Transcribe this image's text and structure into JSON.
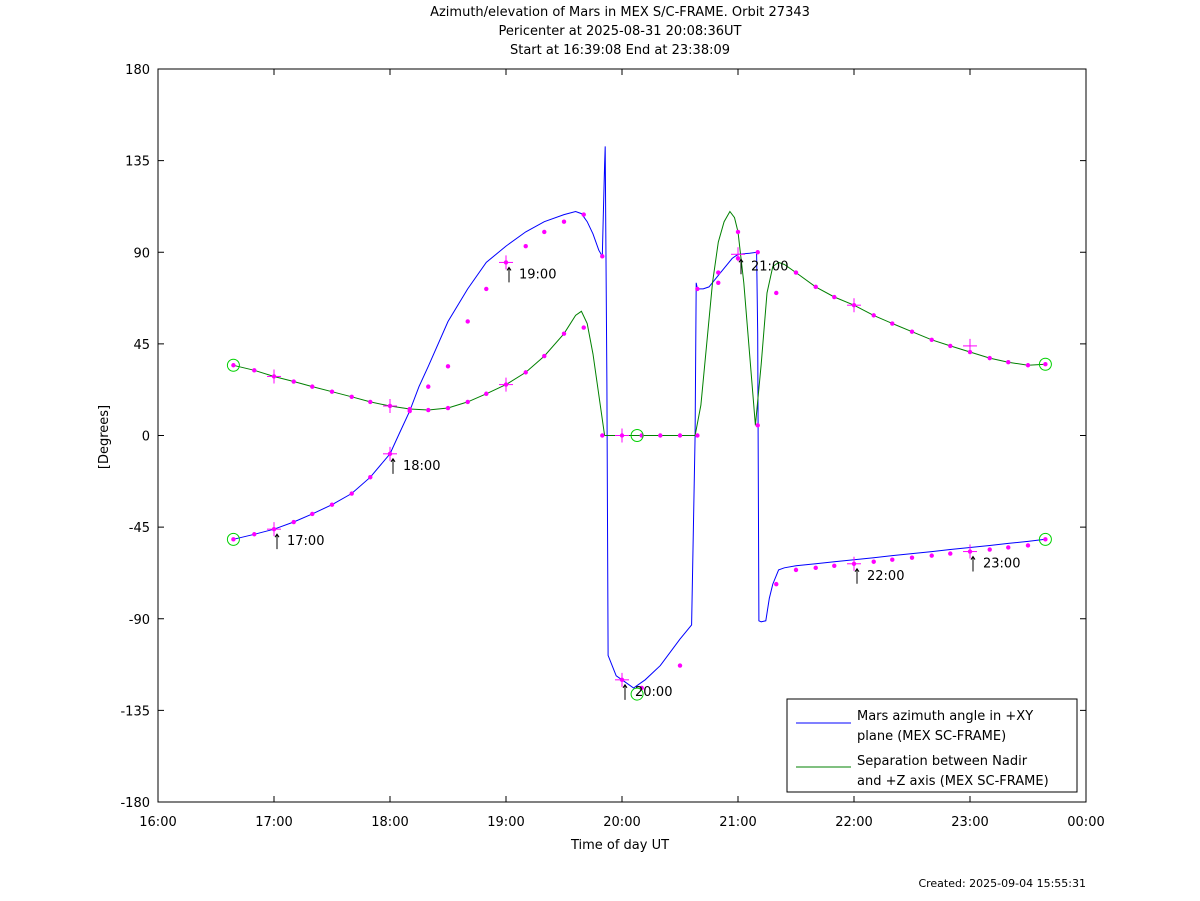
{
  "chart_data": {
    "type": "line",
    "title_lines": [
      "Azimuth/elevation of Mars in MEX S/C-FRAME.  Orbit 27343",
      "Pericenter at 2025-08-31 20:08:36UT",
      "Start at 16:39:08 End at 23:38:09"
    ],
    "xlabel": "Time of day UT",
    "ylabel": "[Degrees]",
    "xlim": [
      16.0,
      24.0
    ],
    "ylim": [
      -180,
      180
    ],
    "x_tick_values": [
      16,
      17,
      18,
      19,
      20,
      21,
      22,
      23,
      24
    ],
    "x_tick_labels": [
      "16:00",
      "17:00",
      "18:00",
      "19:00",
      "20:00",
      "21:00",
      "22:00",
      "23:00",
      "00:00"
    ],
    "y_tick_values": [
      180,
      135,
      90,
      45,
      0,
      -45,
      -90,
      -135,
      -180
    ],
    "y_tick_labels": [
      "180",
      "135",
      "90",
      "45",
      "0",
      "-45",
      "-90",
      "-135",
      "-180"
    ],
    "legend_position": "bottom-right",
    "series": [
      {
        "name": "Mars azimuth angle in +XY plane (MEX SC-FRAME)",
        "legend_lines": [
          "Mars azimuth angle in +XY",
          "plane (MEX SC-FRAME)"
        ],
        "color": "#0000ff",
        "x": [
          16.65,
          16.83,
          17.0,
          17.17,
          17.33,
          17.5,
          17.67,
          17.83,
          18.0,
          18.08,
          18.17,
          18.25,
          18.33,
          18.5,
          18.67,
          18.83,
          19.0,
          19.17,
          19.33,
          19.5,
          19.6,
          19.65,
          19.7,
          19.75,
          19.8,
          19.83,
          19.84,
          19.85,
          19.855,
          19.86,
          19.87,
          19.88,
          19.95,
          20.0,
          20.1,
          20.2,
          20.33,
          20.5,
          20.6,
          20.63,
          20.64,
          20.65,
          20.7,
          20.75,
          20.85,
          20.95,
          21.0,
          21.1,
          21.16,
          21.17,
          21.18,
          21.2,
          21.24,
          21.27,
          21.3,
          21.35,
          21.4,
          21.5,
          21.67,
          21.83,
          22.0,
          22.17,
          22.33,
          22.5,
          22.67,
          22.83,
          23.0,
          23.17,
          23.33,
          23.5,
          23.65
        ],
        "y": [
          -51,
          -48.5,
          -46,
          -42.5,
          -38.5,
          -34,
          -28.5,
          -20.5,
          -9,
          1,
          12,
          24,
          34,
          56,
          72,
          85,
          93,
          100,
          105,
          108.5,
          110,
          109,
          105,
          99,
          91,
          88,
          110,
          133,
          142,
          100,
          25,
          -108,
          -118,
          -120,
          -124,
          -120,
          -113,
          -100,
          -93,
          0,
          75,
          72,
          72,
          73,
          80,
          87,
          89,
          89.5,
          90,
          50,
          -91,
          -91.5,
          -91,
          -80,
          -73,
          -66,
          -65,
          -64,
          -63,
          -62,
          -61,
          -60,
          -59,
          -58,
          -57,
          -56,
          -55,
          -54,
          -53,
          -52,
          -51
        ]
      },
      {
        "name": "Separation between Nadir and +Z axis (MEX SC-FRAME)",
        "legend_lines": [
          "Separation between Nadir",
          "and +Z axis (MEX SC-FRAME)"
        ],
        "color": "#008000",
        "x": [
          16.65,
          16.83,
          17.0,
          17.17,
          17.33,
          17.5,
          17.67,
          17.83,
          18.0,
          18.17,
          18.33,
          18.5,
          18.67,
          18.83,
          19.0,
          19.17,
          19.33,
          19.5,
          19.6,
          19.65,
          19.7,
          19.75,
          19.8,
          19.85,
          20.0,
          20.13,
          20.33,
          20.5,
          20.63,
          20.68,
          20.73,
          20.78,
          20.83,
          20.88,
          20.93,
          20.97,
          21.0,
          21.05,
          21.1,
          21.15,
          21.2,
          21.25,
          21.3,
          21.35,
          21.4,
          21.5,
          21.67,
          21.83,
          22.0,
          22.17,
          22.33,
          22.5,
          22.67,
          22.83,
          23.0,
          23.17,
          23.33,
          23.5,
          23.65
        ],
        "y": [
          34.5,
          32,
          29,
          26.5,
          24,
          21.5,
          19,
          16.5,
          14.5,
          13,
          12.5,
          13.5,
          16.5,
          20.5,
          25,
          31,
          39,
          50,
          59,
          61,
          55,
          40,
          20,
          0,
          0,
          0,
          0,
          0,
          0,
          15,
          45,
          75,
          95,
          105,
          110,
          107,
          100,
          75,
          40,
          5,
          35,
          70,
          83,
          85,
          84,
          80,
          73,
          68,
          64,
          59,
          55,
          51,
          47,
          44,
          41,
          38,
          36,
          34.5,
          35
        ]
      }
    ],
    "markers": {
      "color": "#ff00ff",
      "azimuth_x": [
        16.65,
        16.83,
        17.0,
        17.17,
        17.33,
        17.5,
        17.67,
        17.83,
        18.0,
        18.17,
        18.33,
        18.5,
        18.67,
        18.83,
        19.0,
        19.17,
        19.33,
        19.5,
        19.67,
        19.83,
        20.0,
        20.17,
        20.5,
        20.65,
        20.83,
        21.0,
        21.17,
        21.33,
        21.5,
        21.67,
        21.83,
        22.0,
        22.17,
        22.33,
        22.5,
        22.67,
        22.83,
        23.0,
        23.17,
        23.33,
        23.5,
        23.65
      ],
      "azimuth_y": [
        -51,
        -48.5,
        -46,
        -42.5,
        -38.5,
        -34,
        -28.5,
        -20.5,
        -9,
        12,
        24,
        34,
        56,
        72,
        85,
        93,
        100,
        105,
        108.5,
        88,
        -120,
        -124,
        -113,
        72,
        80,
        87,
        90,
        -73,
        -66,
        -65,
        -64,
        -63,
        -62,
        -61,
        -60,
        -59,
        -58,
        -57,
        -56,
        -55,
        -54,
        -51
      ],
      "separation_x": [
        16.65,
        16.83,
        17.0,
        17.17,
        17.33,
        17.5,
        17.67,
        17.83,
        18.0,
        18.17,
        18.33,
        18.5,
        18.67,
        18.83,
        19.0,
        19.17,
        19.33,
        19.5,
        19.67,
        19.83,
        20.0,
        20.17,
        20.33,
        20.5,
        20.65,
        20.83,
        21.0,
        21.17,
        21.33,
        21.5,
        21.67,
        21.83,
        22.0,
        22.17,
        22.33,
        22.5,
        22.67,
        22.83,
        23.0,
        23.17,
        23.33,
        23.5,
        23.65
      ],
      "separation_y": [
        34.5,
        32,
        29,
        26.5,
        24,
        21.5,
        19,
        16.5,
        14.5,
        13,
        12.5,
        13.5,
        16.5,
        20.5,
        25,
        31,
        39,
        50,
        53,
        0,
        0,
        0,
        0,
        0,
        0,
        75,
        100,
        5,
        70,
        80,
        73,
        68,
        64,
        59,
        55,
        51,
        47,
        44,
        41,
        38,
        36,
        34.5,
        35
      ],
      "hour_crosses": [
        {
          "x": 17.0,
          "y": -46
        },
        {
          "x": 17.0,
          "y": 29
        },
        {
          "x": 18.0,
          "y": -9
        },
        {
          "x": 18.0,
          "y": 14.5
        },
        {
          "x": 19.0,
          "y": 85
        },
        {
          "x": 19.0,
          "y": 25
        },
        {
          "x": 20.0,
          "y": -120
        },
        {
          "x": 20.0,
          "y": 0
        },
        {
          "x": 21.0,
          "y": 89
        },
        {
          "x": 22.0,
          "y": -63
        },
        {
          "x": 22.0,
          "y": 64
        },
        {
          "x": 23.0,
          "y": -57
        },
        {
          "x": 23.0,
          "y": 44
        }
      ],
      "circle_color": "#00d000",
      "circles": [
        {
          "x": 16.65,
          "y": -51
        },
        {
          "x": 16.65,
          "y": 34.5
        },
        {
          "x": 20.13,
          "y": -127
        },
        {
          "x": 20.13,
          "y": 0
        },
        {
          "x": 23.65,
          "y": -51
        },
        {
          "x": 23.65,
          "y": 35
        }
      ]
    },
    "annotations": [
      {
        "text": "17:00",
        "x": 17.0,
        "y": -46
      },
      {
        "text": "18:00",
        "x": 18.0,
        "y": -9
      },
      {
        "text": "19:00",
        "x": 19.0,
        "y": 85
      },
      {
        "text": "20:00",
        "x": 20.0,
        "y": -120
      },
      {
        "text": "21:00",
        "x": 21.0,
        "y": 89
      },
      {
        "text": "22:00",
        "x": 22.0,
        "y": -63
      },
      {
        "text": "23:00",
        "x": 23.0,
        "y": -57
      }
    ],
    "grid": false
  },
  "footer": {
    "created": "Created: 2025-09-04 15:55:31"
  }
}
